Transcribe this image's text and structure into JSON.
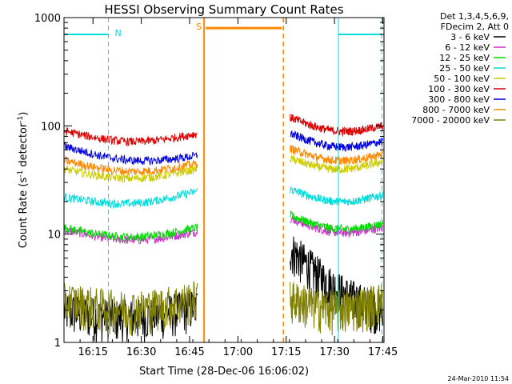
{
  "chart_data": {
    "type": "line",
    "title": "HESSI Observing Summary Count Rates",
    "xlabel": "Start Time (28-Dec-06 16:06:02)",
    "ylabel_main": "Count Rate (s",
    "ylabel_sup1": "-1",
    "ylabel_mid": " detector",
    "ylabel_sup2": "-1",
    "ylabel_end": ")",
    "y_scale": "log",
    "ylim": [
      1,
      1000
    ],
    "xlim_minutes": [
      16.1,
      17.756
    ],
    "x_range_label": [
      "16:06:02",
      "17:45:24"
    ],
    "x_ticks": [
      {
        "label": "16:15",
        "v": 16.25
      },
      {
        "label": "16:30",
        "v": 16.5
      },
      {
        "label": "16:45",
        "v": 16.75
      },
      {
        "label": "17:00",
        "v": 17.0
      },
      {
        "label": "17:15",
        "v": 17.25
      },
      {
        "label": "17:30",
        "v": 17.5
      },
      {
        "label": "17:45",
        "v": 17.75
      }
    ],
    "y_ticks": [
      {
        "label": "1",
        "v": 1
      },
      {
        "label": "10",
        "v": 10
      },
      {
        "label": "100",
        "v": 100
      },
      {
        "label": "1000",
        "v": 1000
      }
    ],
    "legend_header": [
      "Det 1,3,4,5,6,9,",
      "FDecim 2, Att 0"
    ],
    "legend_position": "right",
    "series": [
      {
        "name": "3 - 6 keV",
        "color": "#000000",
        "segments": [
          {
            "x": [
              16.1,
              16.79
            ],
            "y": [
              2.0,
              2.2
            ]
          },
          {
            "x": [
              17.27,
              17.75
            ],
            "y": [
              7.5,
              2.0
            ]
          }
        ]
      },
      {
        "name": "6 - 12 keV",
        "color": "#cc33cc",
        "segments": [
          {
            "x": [
              16.1,
              16.79
            ],
            "y": [
              11.0,
              10.5
            ]
          },
          {
            "x": [
              17.27,
              17.75
            ],
            "y": [
              14.0,
              11.5
            ]
          }
        ]
      },
      {
        "name": "12 - 25 keV",
        "color": "#00dd00",
        "segments": [
          {
            "x": [
              16.1,
              16.79
            ],
            "y": [
              11.5,
              11.5
            ]
          },
          {
            "x": [
              17.27,
              17.75
            ],
            "y": [
              15.0,
              12.5
            ]
          }
        ]
      },
      {
        "name": "25 - 50 keV",
        "color": "#00dddd",
        "segments": [
          {
            "x": [
              16.1,
              16.79
            ],
            "y": [
              22.0,
              25.0
            ]
          },
          {
            "x": [
              17.27,
              17.75
            ],
            "y": [
              26.0,
              23.0
            ]
          }
        ]
      },
      {
        "name": "50 - 100 keV",
        "color": "#cccc00",
        "segments": [
          {
            "x": [
              16.1,
              16.79
            ],
            "y": [
              40.0,
              40.0
            ]
          },
          {
            "x": [
              17.27,
              17.75
            ],
            "y": [
              50.0,
              47.0
            ]
          }
        ]
      },
      {
        "name": "100 - 300 keV",
        "color": "#dd0000",
        "segments": [
          {
            "x": [
              16.1,
              16.79
            ],
            "y": [
              90.0,
              85.0
            ]
          },
          {
            "x": [
              17.27,
              17.75
            ],
            "y": [
              120.0,
              100.0
            ]
          }
        ]
      },
      {
        "name": "300 - 800 keV",
        "color": "#0000dd",
        "segments": [
          {
            "x": [
              16.1,
              16.79
            ],
            "y": [
              65.0,
              53.0
            ]
          },
          {
            "x": [
              17.27,
              17.75
            ],
            "y": [
              85.0,
              72.0
            ]
          }
        ]
      },
      {
        "name": "800 - 7000 keV",
        "color": "#ff8800",
        "segments": [
          {
            "x": [
              16.1,
              16.79
            ],
            "y": [
              48.0,
              45.0
            ]
          },
          {
            "x": [
              17.27,
              17.75
            ],
            "y": [
              62.0,
              55.0
            ]
          }
        ]
      },
      {
        "name": "7000 - 20000 keV",
        "color": "#808000",
        "segments": [
          {
            "x": [
              16.1,
              16.79
            ],
            "y": [
              2.5,
              2.6
            ]
          },
          {
            "x": [
              17.27,
              17.75
            ],
            "y": [
              2.6,
              2.5
            ]
          }
        ]
      }
    ],
    "intervals": [
      {
        "label": "N",
        "color": "#00dddd",
        "level": 700,
        "start": 16.1,
        "end": 16.33,
        "style": "segment"
      },
      {
        "label": "",
        "color": "#00dddd",
        "level": 700,
        "start": 17.52,
        "end": 17.745,
        "style": "segment"
      },
      {
        "label": "S",
        "color": "#ff8800",
        "level": 800,
        "start": 16.825,
        "end": 17.235,
        "style": "saa"
      }
    ],
    "grid": false
  },
  "footer": {
    "timestamp": "24-Mar-2010 11:54"
  }
}
